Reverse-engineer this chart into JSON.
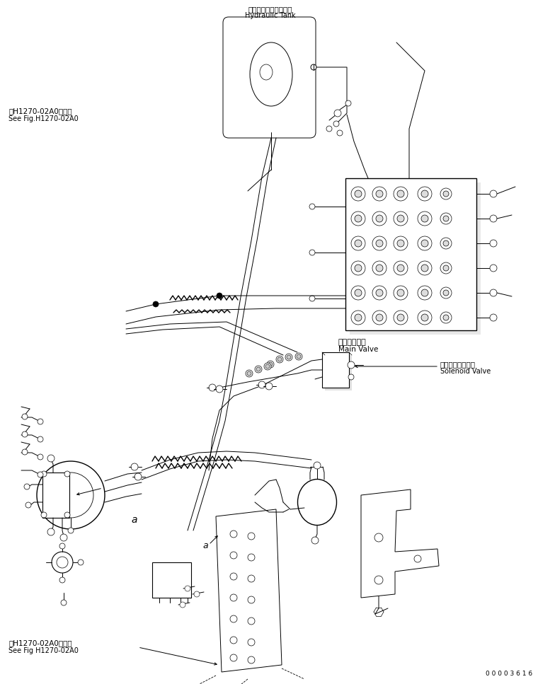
{
  "bg_color": "#ffffff",
  "lc": "#000000",
  "title_top_jp": "ハイドロリックタンク",
  "title_top_en": "Hydraulic Tank",
  "label_main_valve_jp": "メインバルブ",
  "label_main_valve_en": "Main Valve",
  "label_solenoid_jp": "ソレノイドバルブ",
  "label_solenoid_en": "Solenoid Valve",
  "label_ref1_jp": "第H1270-02A0図参照",
  "label_ref1_en": "See Fig.H1270-02A0",
  "label_ref2_jp": "第H1270-02A0図参照",
  "label_ref2_en": "See Fig H1270-02A0",
  "label_a1": "a",
  "label_a2": "a",
  "serial_number": "0 0 0 0 3 6 1 6",
  "figsize": [
    7.6,
    9.67
  ],
  "dpi": 100
}
